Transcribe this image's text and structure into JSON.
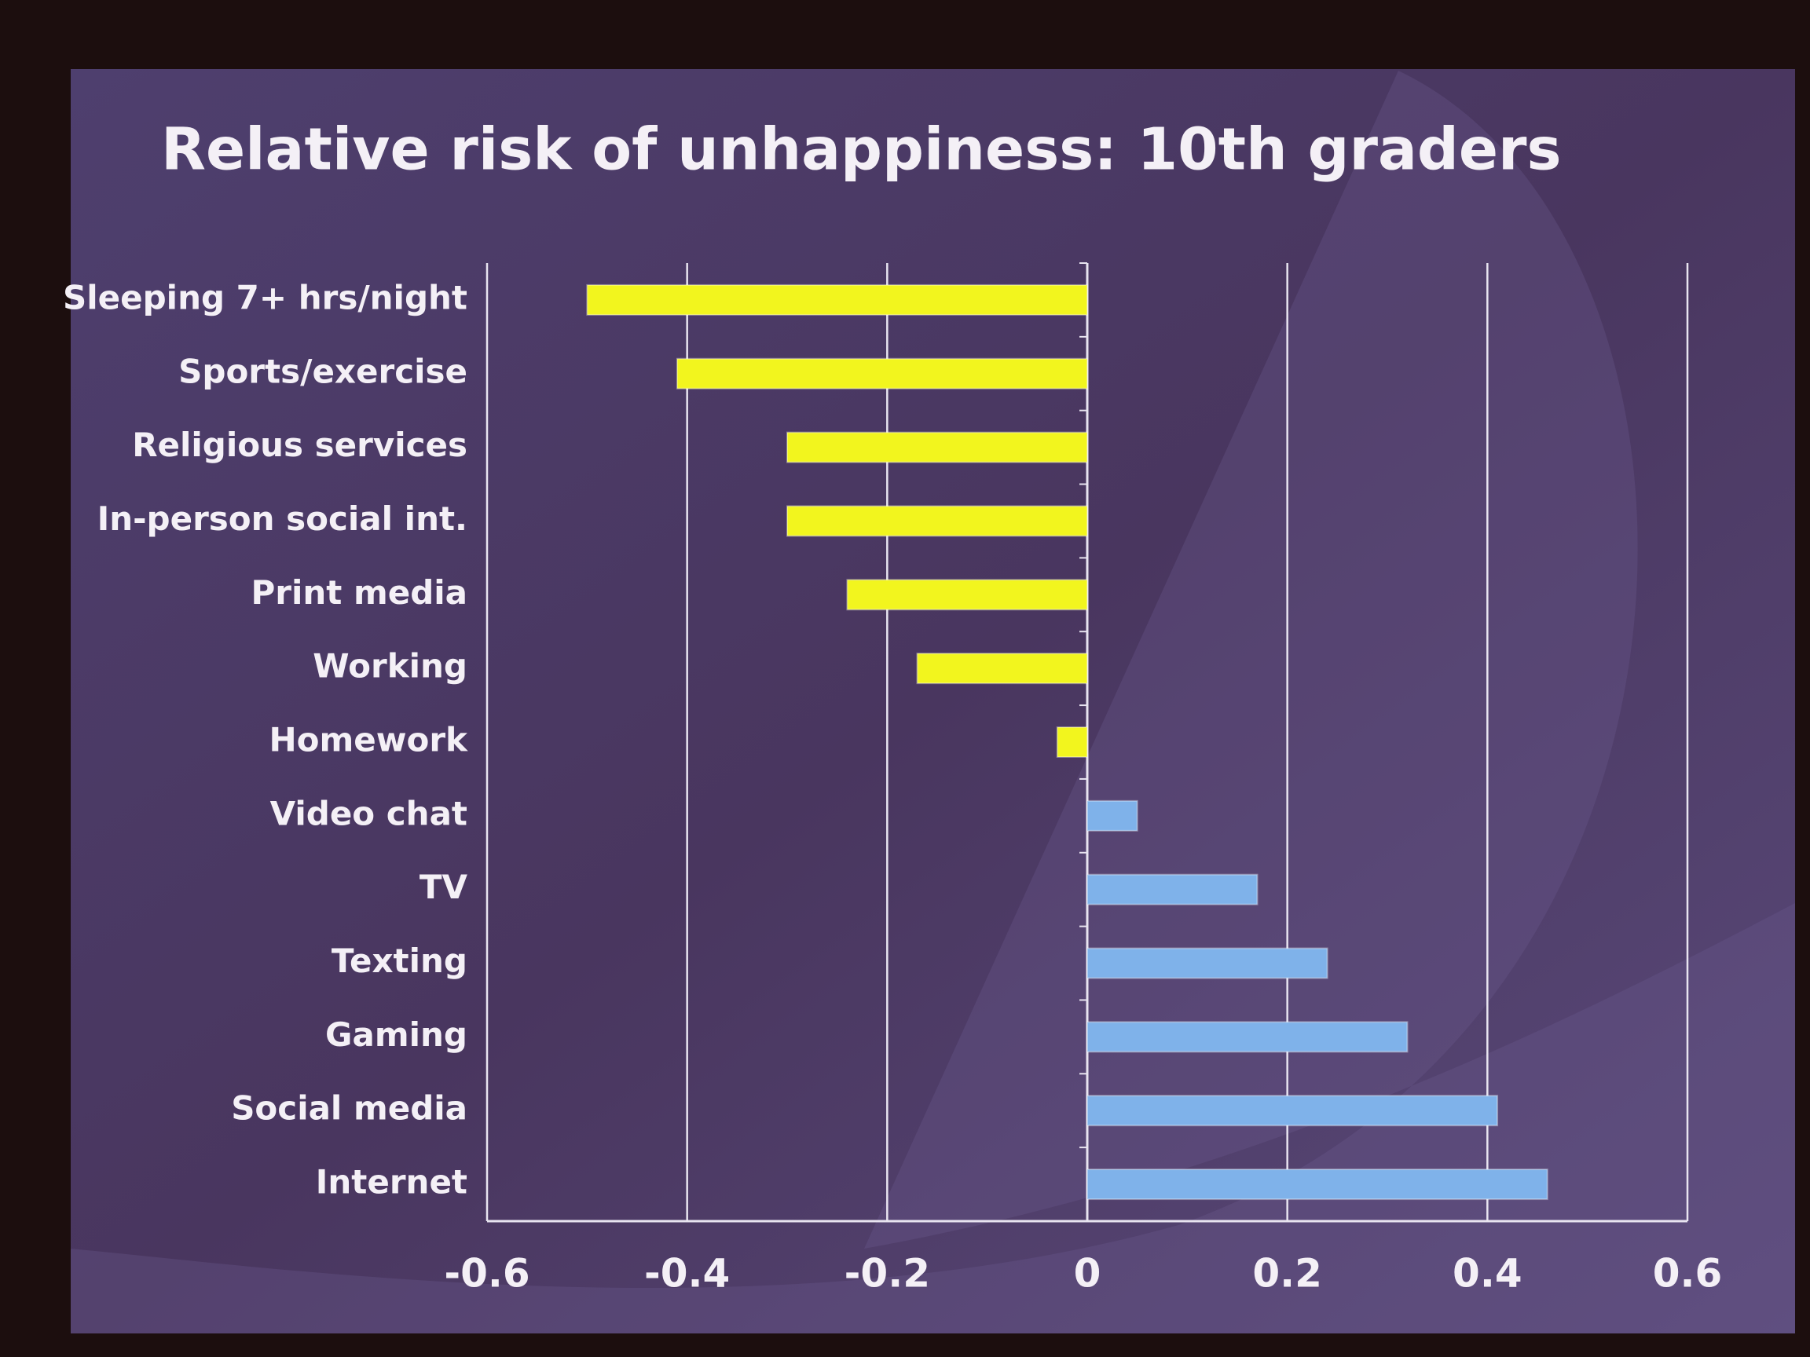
{
  "chart_data": {
    "type": "hbar",
    "title": "Relative risk of unhappiness: 10th graders",
    "categories": [
      "Sleeping 7+ hrs/night",
      "Sports/exercise",
      "Religious services",
      "In-person social int.",
      "Print media",
      "Working",
      "Homework",
      "Video chat",
      "TV",
      "Texting",
      "Gaming",
      "Social media",
      "Internet"
    ],
    "values": [
      -0.5,
      -0.41,
      -0.3,
      -0.3,
      -0.24,
      -0.17,
      -0.03,
      0.05,
      0.17,
      0.24,
      0.32,
      0.41,
      0.46
    ],
    "colors": [
      "#f2f51e",
      "#f2f51e",
      "#f2f51e",
      "#f2f51e",
      "#f2f51e",
      "#f2f51e",
      "#f2f51e",
      "#7fb2ea",
      "#7fb2ea",
      "#7fb2ea",
      "#7fb2ea",
      "#7fb2ea",
      "#7fb2ea"
    ],
    "xlim": [
      -0.6,
      0.6
    ],
    "xticks": [
      -0.6,
      -0.4,
      -0.2,
      0,
      0.2,
      0.4,
      0.6
    ],
    "grid": true
  }
}
